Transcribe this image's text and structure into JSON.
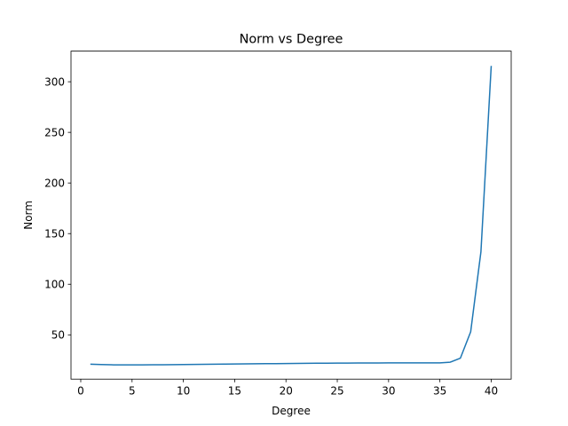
{
  "chart_data": {
    "type": "line",
    "title": "Norm vs Degree",
    "xlabel": "Degree",
    "ylabel": "Norm",
    "xlim": [
      -0.95,
      41.95
    ],
    "ylim": [
      6.25,
      330.25
    ],
    "xticks": [
      0,
      5,
      10,
      15,
      20,
      25,
      30,
      35,
      40
    ],
    "yticks": [
      50,
      100,
      150,
      200,
      250,
      300
    ],
    "grid": false,
    "legend": "none",
    "series": [
      {
        "color": "#1f77b4",
        "x": [
          1,
          2,
          3,
          4,
          5,
          6,
          7,
          8,
          9,
          10,
          11,
          12,
          13,
          14,
          15,
          16,
          17,
          18,
          19,
          20,
          21,
          22,
          23,
          24,
          25,
          26,
          27,
          28,
          29,
          30,
          31,
          32,
          33,
          34,
          35,
          36,
          37,
          38,
          39,
          40
        ],
        "y": [
          21,
          20.7,
          20.4,
          20.3,
          20.3,
          20.3,
          20.4,
          20.5,
          20.6,
          20.7,
          20.8,
          20.9,
          21.0,
          21.1,
          21.2,
          21.3,
          21.4,
          21.5,
          21.6,
          21.7,
          21.8,
          21.9,
          22.0,
          22.0,
          22.1,
          22.1,
          22.2,
          22.2,
          22.2,
          22.3,
          22.3,
          22.3,
          22.3,
          22.3,
          22.3,
          23.0,
          27.0,
          53.0,
          132.0,
          315.0
        ]
      }
    ]
  }
}
